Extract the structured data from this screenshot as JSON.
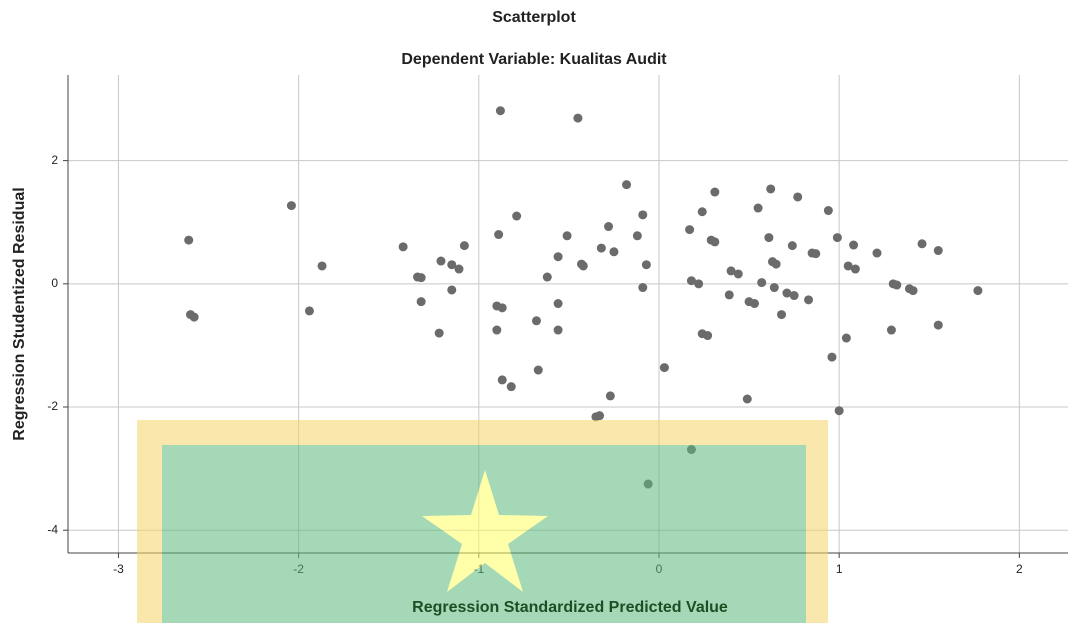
{
  "chart_data": {
    "type": "scatter",
    "title": "Scatterplot",
    "subtitle": "Dependent Variable: Kualitas Audit",
    "x_label": "Regression Standardized Predicted Value",
    "y_label": "Regression Studentized Residual",
    "xlim": [
      -3.28,
      2.27
    ],
    "ylim": [
      -4.37,
      3.39
    ],
    "xticks": [
      -3,
      -2,
      -1,
      0,
      1,
      2
    ],
    "yticks": [
      -4,
      -2,
      0,
      2
    ],
    "grid": true,
    "series": [
      {
        "color": "#6b6b6b",
        "x": [
          -2.61,
          -2.6,
          -2.58,
          -2.04,
          -1.94,
          -1.87,
          -1.42,
          -1.34,
          -1.32,
          -1.32,
          -1.22,
          -1.21,
          -1.15,
          -1.15,
          -1.11,
          -1.08,
          -0.88,
          -0.89,
          -0.9,
          -0.87,
          -0.9,
          -0.87,
          -0.82,
          -0.79,
          -0.68,
          -0.67,
          -0.62,
          -0.56,
          -0.56,
          -0.56,
          -0.51,
          -0.45,
          -0.43,
          -0.42,
          -0.35,
          -0.33,
          -0.32,
          -0.28,
          -0.27,
          -0.25,
          -0.18,
          -0.12,
          -0.09,
          -0.09,
          -0.07,
          -0.06,
          0.03,
          0.17,
          0.18,
          0.18,
          0.22,
          0.24,
          0.24,
          0.27,
          0.29,
          0.31,
          0.31,
          0.39,
          0.4,
          0.44,
          0.49,
          0.5,
          0.53,
          0.55,
          0.57,
          0.61,
          0.62,
          0.63,
          0.65,
          0.64,
          0.68,
          0.71,
          0.74,
          0.75,
          0.77,
          0.83,
          0.85,
          0.87,
          0.94,
          0.96,
          0.99,
          1.0,
          1.04,
          1.05,
          1.08,
          1.09,
          1.21,
          1.29,
          1.3,
          1.32,
          1.39,
          1.41,
          1.46,
          1.55,
          1.55,
          1.77
        ],
        "values": [
          0.71,
          -0.5,
          -0.54,
          1.27,
          -0.44,
          0.29,
          0.6,
          0.11,
          0.1,
          -0.29,
          -0.8,
          0.37,
          0.31,
          -0.1,
          0.24,
          0.62,
          2.81,
          0.8,
          -0.36,
          -0.39,
          -0.75,
          -1.56,
          -1.67,
          1.1,
          -0.6,
          -1.4,
          0.11,
          0.44,
          -0.32,
          -0.75,
          0.78,
          2.69,
          0.32,
          0.29,
          -2.16,
          -2.14,
          0.58,
          0.93,
          -1.82,
          0.52,
          1.61,
          0.78,
          1.12,
          -0.06,
          0.31,
          -3.25,
          -1.36,
          0.88,
          0.05,
          -2.69,
          0.0,
          1.17,
          -0.81,
          -0.84,
          0.71,
          0.68,
          1.49,
          -0.18,
          0.21,
          0.16,
          -1.87,
          -0.29,
          -0.32,
          1.23,
          0.02,
          0.75,
          1.54,
          0.36,
          0.32,
          -0.06,
          -0.5,
          -0.15,
          0.62,
          -0.19,
          1.41,
          -0.26,
          0.5,
          0.49,
          1.19,
          -1.19,
          0.75,
          -2.06,
          -0.88,
          0.29,
          0.63,
          0.24,
          0.5,
          -0.75,
          0.0,
          -0.02,
          -0.08,
          -0.11,
          0.65,
          0.54,
          -0.67,
          -0.11
        ]
      }
    ]
  }
}
